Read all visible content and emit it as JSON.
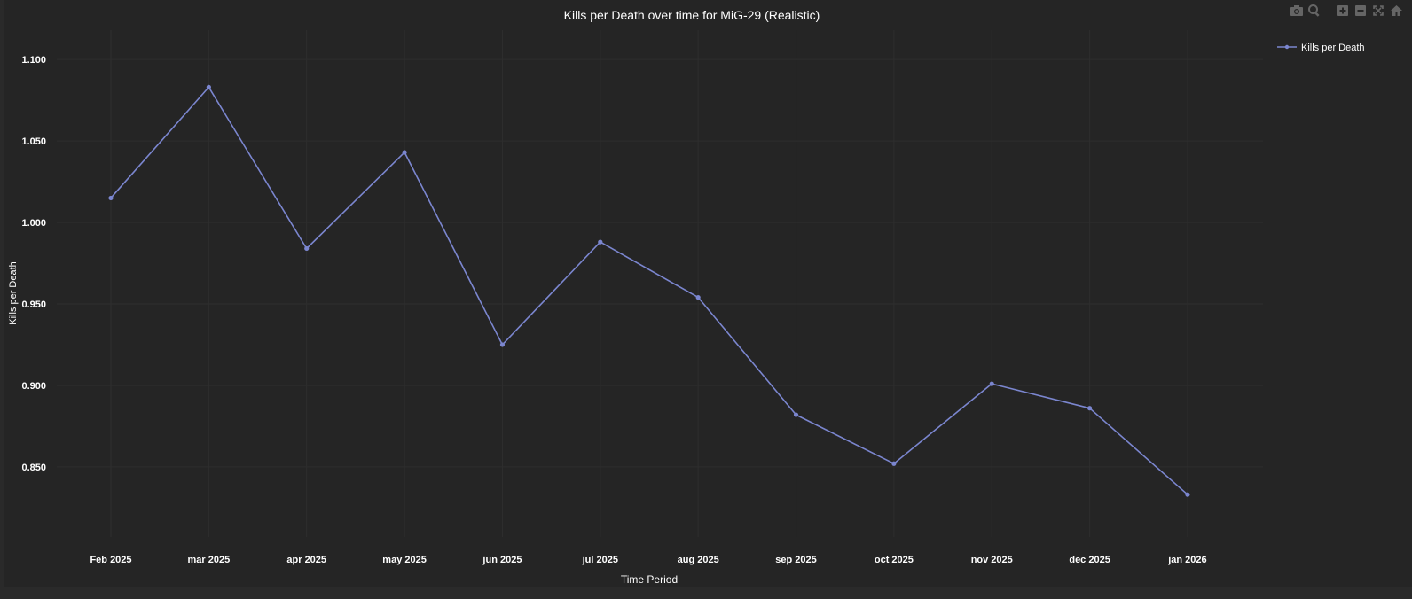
{
  "toolbar": {
    "icons": [
      "camera-icon",
      "zoom-icon",
      "zoom-in-icon",
      "zoom-out-icon",
      "autoscale-icon",
      "home-icon"
    ]
  },
  "colors": {
    "background": "#252525",
    "line": "#7b86cf",
    "text": "#ffffff",
    "grid": "#2e2e2e"
  },
  "chart_data": {
    "type": "line",
    "title": "Kills per Death over time for MiG-29 (Realistic)",
    "xlabel": "Time Period",
    "ylabel": "Kills per Death",
    "x": [
      "Feb 2025",
      "mar 2025",
      "apr 2025",
      "may 2025",
      "jun 2025",
      "jul 2025",
      "aug 2025",
      "sep 2025",
      "oct 2025",
      "nov 2025",
      "dec 2025",
      "jan 2026"
    ],
    "yticks": [
      "1.100",
      "1.050",
      "1.000",
      "0.950",
      "0.900",
      "0.850"
    ],
    "ylim": [
      0.807,
      1.118
    ],
    "series": [
      {
        "name": "Kills per Death",
        "values": [
          1.015,
          1.083,
          0.984,
          1.043,
          0.925,
          0.988,
          0.954,
          0.882,
          0.852,
          0.901,
          0.886,
          0.833
        ]
      }
    ],
    "legend_position": "top-right",
    "grid": true
  }
}
